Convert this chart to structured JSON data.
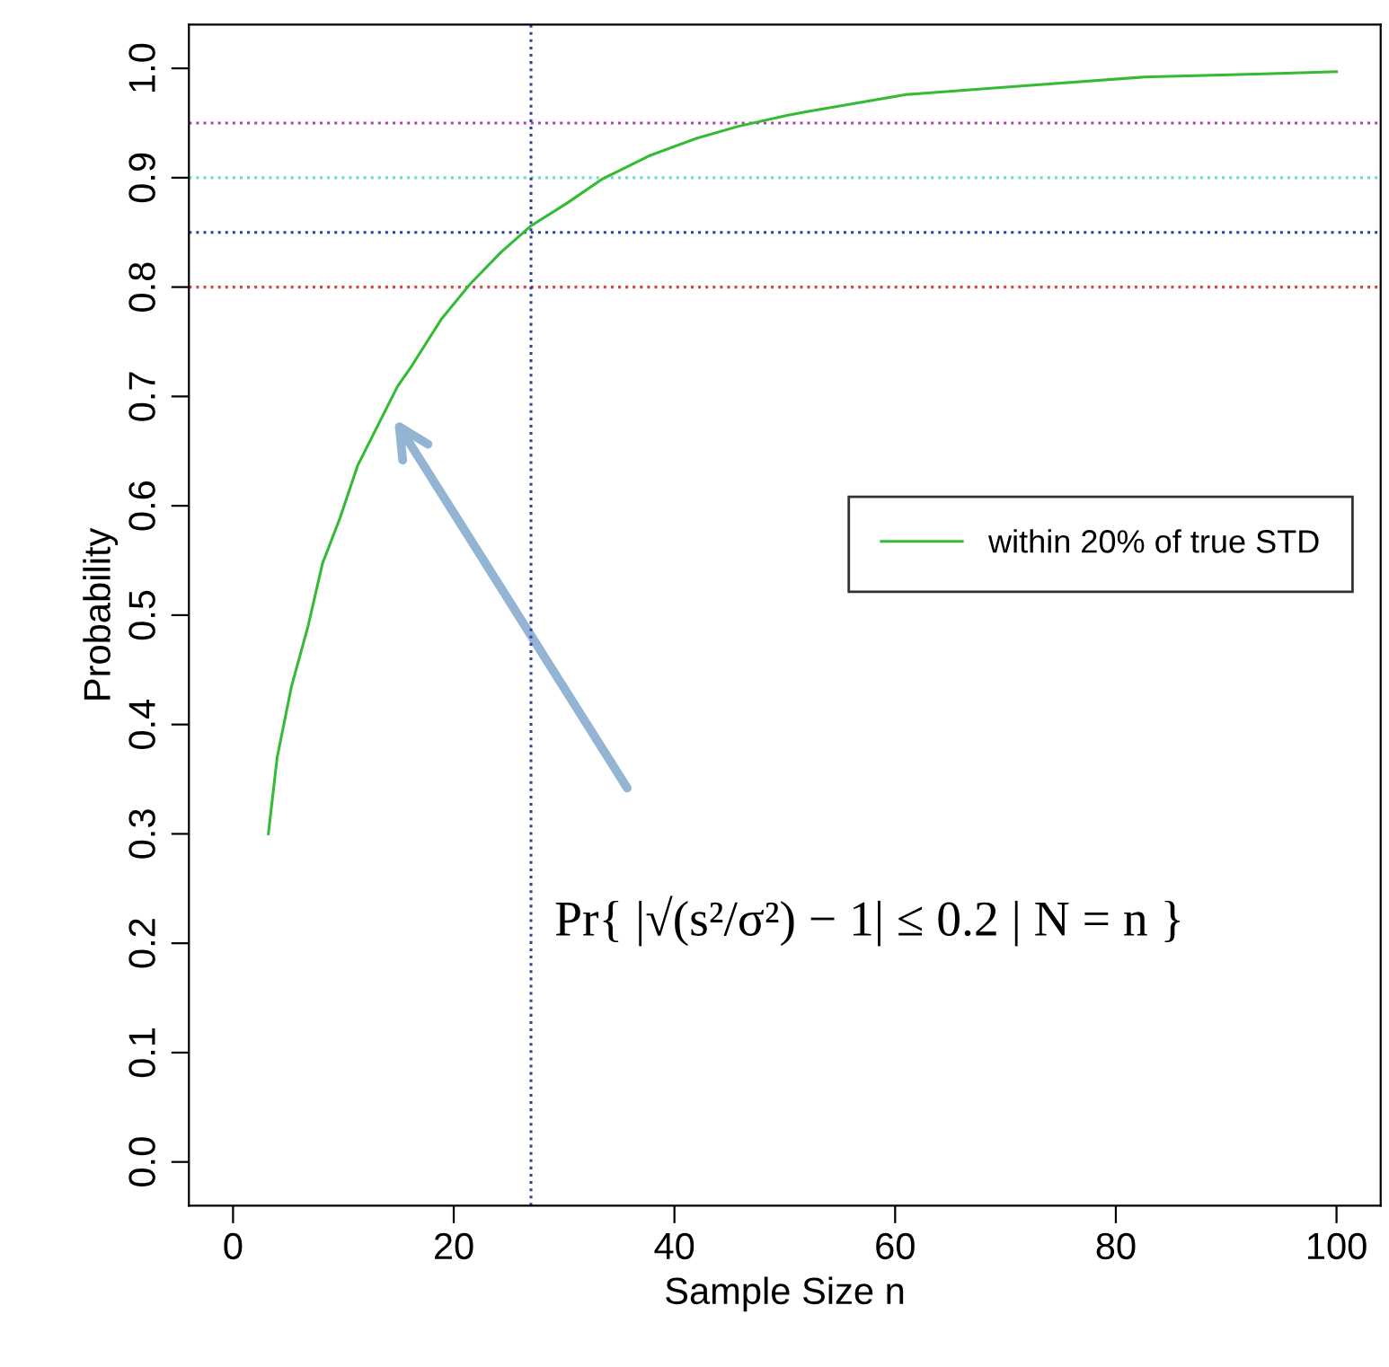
{
  "chart_data": {
    "type": "line",
    "xlabel": "Sample Size n",
    "ylabel": "Probability",
    "x": [
      3.2,
      4.0,
      5.3,
      6.8,
      8.1,
      9.7,
      11.3,
      12.9,
      14.9,
      16.2,
      18.9,
      21.5,
      24.3,
      27,
      30.3,
      33.5,
      37.7,
      42,
      45.8,
      50.2,
      51.8,
      61,
      71.7,
      82.5,
      93.4,
      100
    ],
    "series": [
      {
        "name": "within 20% of true STD",
        "color": "#33bb33",
        "values": [
          0.3,
          0.37,
          0.435,
          0.49,
          0.547,
          0.589,
          0.637,
          0.669,
          0.709,
          0.728,
          0.771,
          0.803,
          0.832,
          0.856,
          0.877,
          0.899,
          0.92,
          0.936,
          0.947,
          0.957,
          0.96,
          0.976,
          0.984,
          0.992,
          0.995,
          0.997
        ]
      }
    ],
    "xlim": [
      -4,
      104
    ],
    "ylim": [
      -0.04,
      1.04
    ],
    "xticks": [
      0,
      20,
      40,
      60,
      80,
      100
    ],
    "yticks": [
      {
        "value": 0,
        "label": "0.0"
      },
      0.1,
      0.2,
      0.3,
      0.4,
      0.5,
      0.6,
      0.7,
      0.8,
      0.9,
      {
        "value": 1,
        "label": "1.0"
      }
    ],
    "ref_lines": [
      {
        "axis": "y",
        "value": 0.95,
        "color": "#b040b0",
        "line_style": "dotted"
      },
      {
        "axis": "y",
        "value": 0.9,
        "color": "#70d8d0",
        "line_style": "dotted"
      },
      {
        "axis": "y",
        "value": 0.85,
        "color": "#3040a0",
        "line_style": "dotted"
      },
      {
        "axis": "y",
        "value": 0.8,
        "color": "#e04040",
        "line_style": "dotted"
      },
      {
        "axis": "x",
        "value": 27,
        "color": "#3040a0",
        "line_style": "dotted"
      }
    ],
    "annotations": [
      "Pr{ |√(s²/σ²) − 1| ≤ 0.2 | N = n }"
    ],
    "legend": "right",
    "grid": false,
    "marker": "none",
    "line_style": "solid"
  }
}
